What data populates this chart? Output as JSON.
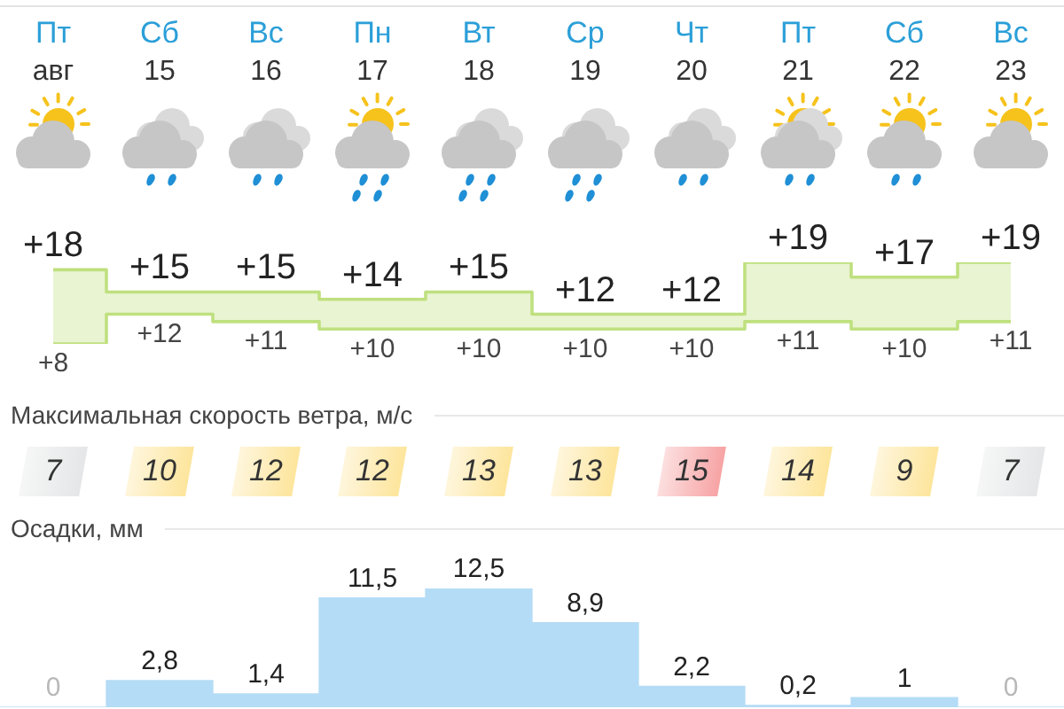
{
  "chart_data": [
    {
      "type": "step",
      "categories": [
        "Пт авг",
        "Сб 15",
        "Вс 16",
        "Пн 17",
        "Вт 18",
        "Ср 19",
        "Чт 20",
        "Пт 21",
        "Сб 22",
        "Вс 23"
      ],
      "tick_labels": "x",
      "series": [
        {
          "color": "#bfe07f",
          "values": [
            18,
            15,
            15,
            14,
            15,
            12,
            12,
            19,
            17,
            19
          ],
          "value_labels": [
            "+18",
            "+15",
            "+15",
            "+14",
            "+15",
            "+12",
            "+12",
            "+19",
            "+17",
            "+19"
          ],
          "lower": [
            8,
            12,
            11,
            10,
            10,
            10,
            10,
            11,
            10,
            11
          ],
          "upper": [
            18,
            15,
            15,
            14,
            15,
            12,
            12,
            19,
            17,
            19
          ]
        },
        {
          "color": "#bfe07f",
          "values": [
            8,
            12,
            11,
            10,
            10,
            10,
            10,
            11,
            10,
            11
          ],
          "value_labels": [
            "+8",
            "+12",
            "+11",
            "+10",
            "+10",
            "+10",
            "+10",
            "+11",
            "+10",
            "+11"
          ]
        }
      ]
    },
    {
      "type": "other",
      "title": "Максимальная скорость ветра, м/с",
      "values": [
        7,
        10,
        12,
        12,
        13,
        13,
        15,
        14,
        9,
        7
      ],
      "colors": [
        "#e5e6e7",
        "#fde59c",
        "#fde59c",
        "#fde59c",
        "#fde59c",
        "#fde59c",
        "#f7a3a4",
        "#fde59c",
        "#fde59c",
        "#e5e6e7"
      ],
      "data_labels": true
    },
    {
      "type": "bar",
      "title": "Осадки, мм",
      "categories": [
        null,
        null,
        null,
        null,
        null,
        null,
        null,
        null,
        null,
        null
      ],
      "tick_labels": false,
      "color": "#b4dcf6",
      "values": [
        0,
        2.8,
        1.4,
        11.5,
        12.5,
        8.9,
        2.2,
        0.2,
        1,
        0
      ],
      "value_labels": [
        "0",
        "2,8",
        "1,4",
        "11,5",
        "12,5",
        "8,9",
        "2,2",
        "0,2",
        "1",
        "0"
      ]
    }
  ]
}
